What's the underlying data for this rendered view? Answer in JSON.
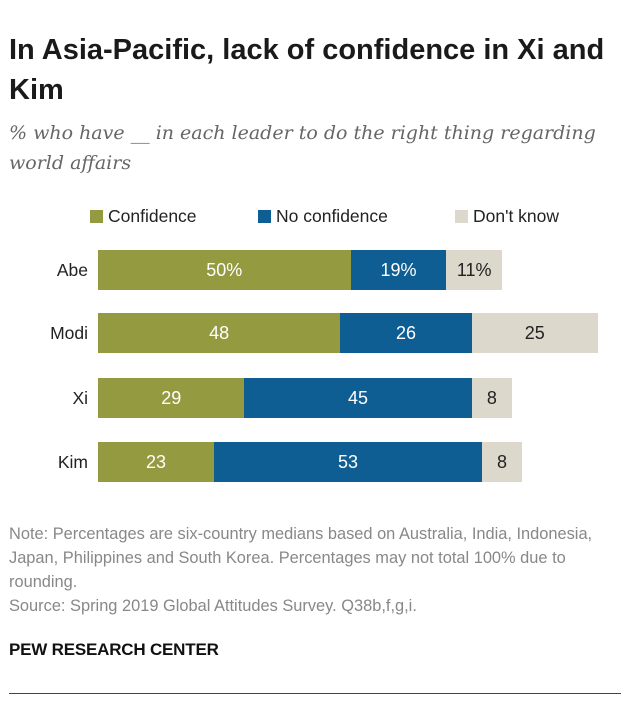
{
  "title": "In Asia-Pacific, lack of confidence in Xi and Kim",
  "subtitle": "% who have __ in each leader to do the right thing regarding world affairs",
  "chart_data": {
    "type": "bar",
    "orientation": "horizontal",
    "stacked": true,
    "categories": [
      "Abe",
      "Modi",
      "Xi",
      "Kim"
    ],
    "series": [
      {
        "name": "Confidence",
        "color": "#949a3f",
        "label_color": "#ffffff",
        "values": [
          50,
          48,
          29,
          23
        ],
        "labels": [
          "50%",
          "48",
          "29",
          "23"
        ]
      },
      {
        "name": "No confidence",
        "color": "#0f5e93",
        "label_color": "#ffffff",
        "values": [
          19,
          26,
          45,
          53
        ],
        "labels": [
          "19%",
          "26",
          "45",
          "53"
        ]
      },
      {
        "name": "Don't know",
        "color": "#dcd8cb",
        "label_color": "#222222",
        "values": [
          11,
          25,
          8,
          8
        ],
        "labels": [
          "11%",
          "25",
          "8",
          "8"
        ]
      }
    ],
    "xlim": [
      0,
      100
    ],
    "legend": "top",
    "grid": false
  },
  "note": "Note: Percentages are six-country medians based on Australia, India, Indonesia, Japan, Philippines and South Korea. Percentages may not total 100% due to rounding.",
  "source": "Source: Spring 2019 Global Attitudes Survey. Q38b,f,g,i.",
  "brand": "PEW RESEARCH CENTER"
}
